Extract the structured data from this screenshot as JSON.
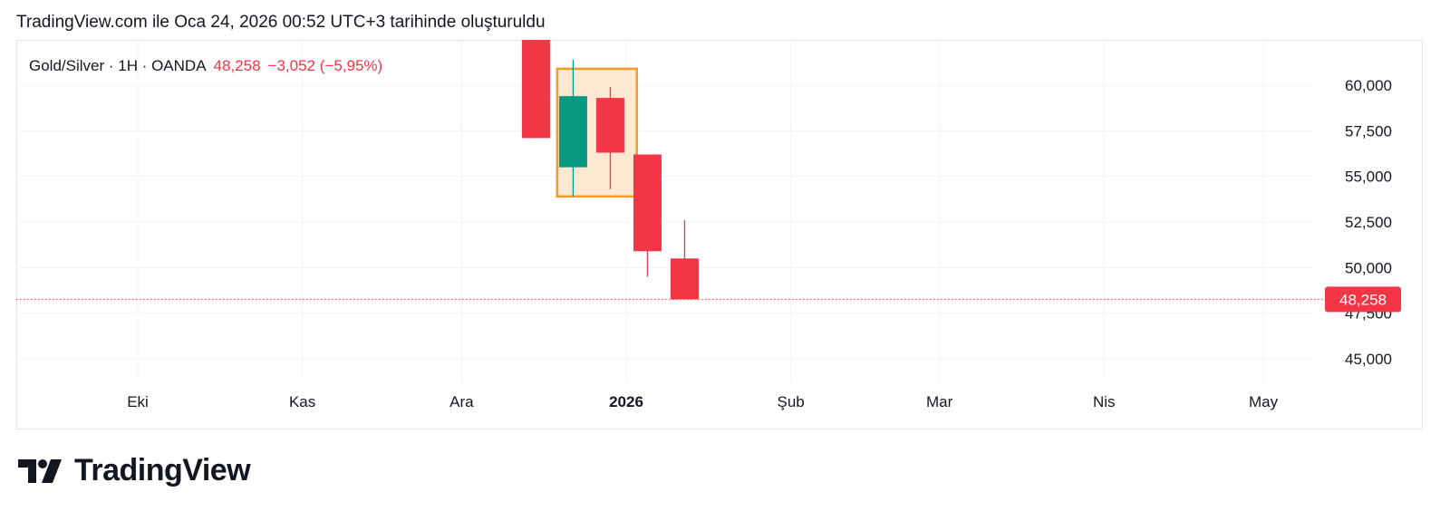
{
  "header": {
    "caption": "TradingView.com ile Oca 24, 2026 00:52 UTC+3 tarihinde oluşturuldu"
  },
  "legend": {
    "symbol": "Gold/Silver · 1H · OANDA",
    "last": "48,258",
    "change": "−3,052 (−5,95%)"
  },
  "brand": {
    "name": "TradingView",
    "logo_icon": "tradingview-logo-icon"
  },
  "colors": {
    "up": "#089981",
    "down": "#f23645",
    "box_border": "#f59a23",
    "box_fill": "#fde8d1",
    "grid": "#f0f3fa",
    "axis_text": "#131722"
  },
  "chart_data": {
    "type": "candlestick",
    "y_ticks": [
      {
        "value": 60000,
        "label": "60,000"
      },
      {
        "value": 57500,
        "label": "57,500"
      },
      {
        "value": 55000,
        "label": "55,000"
      },
      {
        "value": 52500,
        "label": "52,500"
      },
      {
        "value": 50000,
        "label": "50,000"
      },
      {
        "value": 47500,
        "label": "47,500"
      },
      {
        "value": 45000,
        "label": "45,000"
      }
    ],
    "ylim": [
      44000,
      62500
    ],
    "x_ticks": [
      {
        "date": "2025-10-01",
        "label": "Eki",
        "bold": false
      },
      {
        "date": "2025-11-01",
        "label": "Kas",
        "bold": false
      },
      {
        "date": "2025-12-01",
        "label": "Ara",
        "bold": false
      },
      {
        "date": "2026-01-01",
        "label": "2026",
        "bold": true
      },
      {
        "date": "2026-02-01",
        "label": "Şub",
        "bold": false
      },
      {
        "date": "2026-03-01",
        "label": "Mar",
        "bold": false
      },
      {
        "date": "2026-04-01",
        "label": "Nis",
        "bold": false
      },
      {
        "date": "2026-05-01",
        "label": "May",
        "bold": false
      }
    ],
    "candles": [
      {
        "date": "2025-12-15",
        "open": 62500,
        "high": 62500,
        "low": 57100,
        "close": 57100
      },
      {
        "date": "2025-12-22",
        "open": 55500,
        "high": 61400,
        "low": 53900,
        "close": 59400
      },
      {
        "date": "2025-12-29",
        "open": 59300,
        "high": 59900,
        "low": 54300,
        "close": 56300
      },
      {
        "date": "2026-01-05",
        "open": 56200,
        "high": 56200,
        "low": 49500,
        "close": 50900
      },
      {
        "date": "2026-01-12",
        "open": 50500,
        "high": 52600,
        "low": 48258,
        "close": 48258
      }
    ],
    "last_price": {
      "value": 48258,
      "label": "48,258"
    },
    "highlight_box": {
      "x_start": "2025-12-19",
      "x_end": "2026-01-03",
      "y_top": 60900,
      "y_bottom": 53900
    }
  }
}
